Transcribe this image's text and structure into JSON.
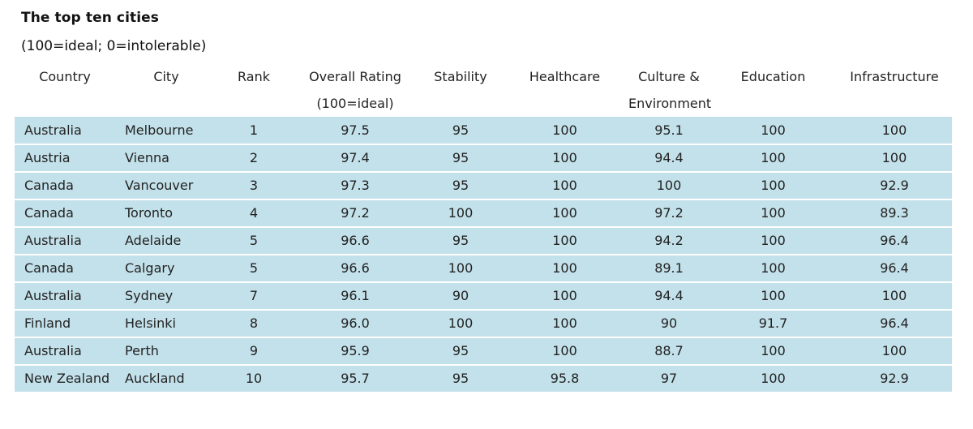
{
  "title": "The top ten cities",
  "subtitle": "(100=ideal; 0=intolerable)",
  "chart_data": {
    "type": "table",
    "columns": [
      {
        "key": "country",
        "label": "Country",
        "sublabel": ""
      },
      {
        "key": "city",
        "label": "City",
        "sublabel": ""
      },
      {
        "key": "rank",
        "label": "Rank",
        "sublabel": ""
      },
      {
        "key": "overall",
        "label": "Overall Rating",
        "sublabel": "(100=ideal)"
      },
      {
        "key": "stability",
        "label": "Stability",
        "sublabel": ""
      },
      {
        "key": "healthcare",
        "label": "Healthcare",
        "sublabel": ""
      },
      {
        "key": "culture",
        "label": "Culture &",
        "sublabel": "Environment"
      },
      {
        "key": "education",
        "label": "Education",
        "sublabel": ""
      },
      {
        "key": "infrastructure",
        "label": "Infrastructure",
        "sublabel": ""
      }
    ],
    "rows": [
      {
        "country": "Australia",
        "city": "Melbourne",
        "rank": "1",
        "overall": "97.5",
        "stability": "95",
        "healthcare": "100",
        "culture": "95.1",
        "education": "100",
        "infrastructure": "100"
      },
      {
        "country": "Austria",
        "city": "Vienna",
        "rank": "2",
        "overall": "97.4",
        "stability": "95",
        "healthcare": "100",
        "culture": "94.4",
        "education": "100",
        "infrastructure": "100"
      },
      {
        "country": "Canada",
        "city": "Vancouver",
        "rank": "3",
        "overall": "97.3",
        "stability": "95",
        "healthcare": "100",
        "culture": "100",
        "education": "100",
        "infrastructure": "92.9"
      },
      {
        "country": "Canada",
        "city": "Toronto",
        "rank": "4",
        "overall": "97.2",
        "stability": "100",
        "healthcare": "100",
        "culture": "97.2",
        "education": "100",
        "infrastructure": "89.3"
      },
      {
        "country": "Australia",
        "city": "Adelaide",
        "rank": "5",
        "overall": "96.6",
        "stability": "95",
        "healthcare": "100",
        "culture": "94.2",
        "education": "100",
        "infrastructure": "96.4"
      },
      {
        "country": "Canada",
        "city": "Calgary",
        "rank": "5",
        "overall": "96.6",
        "stability": "100",
        "healthcare": "100",
        "culture": "89.1",
        "education": "100",
        "infrastructure": "96.4"
      },
      {
        "country": "Australia",
        "city": "Sydney",
        "rank": "7",
        "overall": "96.1",
        "stability": "90",
        "healthcare": "100",
        "culture": "94.4",
        "education": "100",
        "infrastructure": "100"
      },
      {
        "country": "Finland",
        "city": "Helsinki",
        "rank": "8",
        "overall": "96.0",
        "stability": "100",
        "healthcare": "100",
        "culture": "90",
        "education": "91.7",
        "infrastructure": "96.4"
      },
      {
        "country": "Australia",
        "city": "Perth",
        "rank": "9",
        "overall": "95.9",
        "stability": "95",
        "healthcare": "100",
        "culture": "88.7",
        "education": "100",
        "infrastructure": "100"
      },
      {
        "country": "New Zealand",
        "city": "Auckland",
        "rank": "10",
        "overall": "95.7",
        "stability": "95",
        "healthcare": "95.8",
        "culture": "97",
        "education": "100",
        "infrastructure": "92.9"
      }
    ]
  },
  "colors": {
    "row_background": "#c3e1ea",
    "row_separator": "#ffffff",
    "text": "#222222"
  }
}
